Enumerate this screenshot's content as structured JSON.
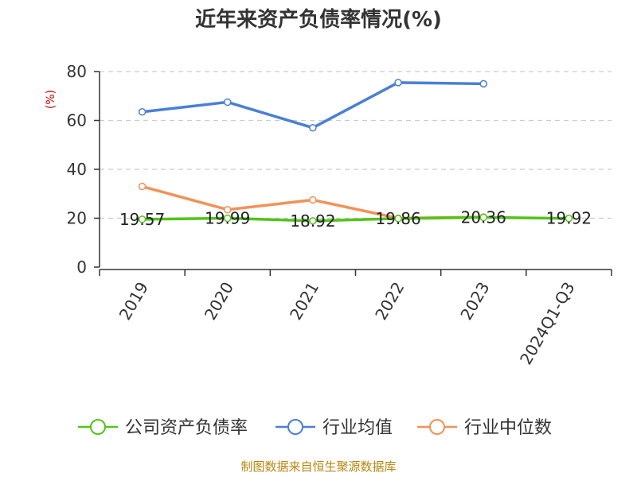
{
  "chart_data": {
    "type": "line",
    "title": "近年来资产负债率情况(%)",
    "ylabel": "(%)",
    "categories": [
      "2019",
      "2020",
      "2021",
      "2022",
      "2023",
      "2024Q1-Q3"
    ],
    "ylim": [
      0,
      80
    ],
    "yticks": [
      0,
      20,
      40,
      60,
      80
    ],
    "grid": true,
    "legend_position": "bottom",
    "series": [
      {
        "name": "公司资产负债率",
        "color": "#52c41a",
        "values": [
          19.57,
          19.99,
          18.92,
          19.86,
          20.36,
          19.92
        ],
        "labels": [
          "19.57",
          "19.99",
          "18.92",
          "19.86",
          "20.36",
          "19.92"
        ]
      },
      {
        "name": "行业均值",
        "color": "#4a7fd8",
        "values": [
          63.5,
          67.5,
          57,
          75.5,
          75,
          null
        ]
      },
      {
        "name": "行业中位数",
        "color": "#f39257",
        "values": [
          33,
          23.5,
          27.5,
          20,
          20.5,
          null
        ]
      }
    ]
  },
  "source": "制图数据来自恒生聚源数据库"
}
